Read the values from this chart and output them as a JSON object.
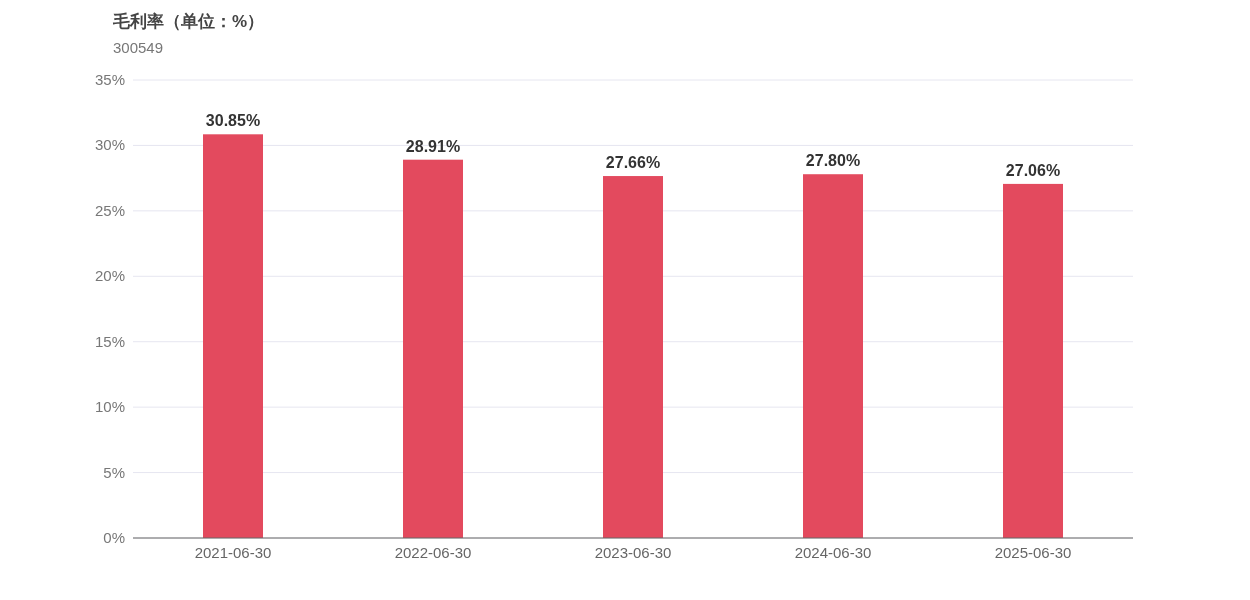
{
  "chart_data": {
    "type": "bar",
    "title": "毛利率（单位：%）",
    "subtitle": "300549",
    "categories": [
      "2021-06-30",
      "2022-06-30",
      "2023-06-30",
      "2024-06-30",
      "2025-06-30"
    ],
    "values": [
      30.85,
      28.91,
      27.66,
      27.8,
      27.06
    ],
    "value_labels": [
      "30.85%",
      "28.91%",
      "27.66%",
      "27.80%",
      "27.06%"
    ],
    "color": "#e34a5e",
    "ylim": [
      0,
      35
    ],
    "yticks": [
      {
        "value": 0,
        "label": "0%"
      },
      {
        "value": 5,
        "label": "5%"
      },
      {
        "value": 10,
        "label": "10%"
      },
      {
        "value": 15,
        "label": "15%"
      },
      {
        "value": 20,
        "label": "20%"
      },
      {
        "value": 25,
        "label": "25%"
      },
      {
        "value": 30,
        "label": "30%"
      },
      {
        "value": 35,
        "label": "35%"
      }
    ],
    "grid": "y"
  }
}
